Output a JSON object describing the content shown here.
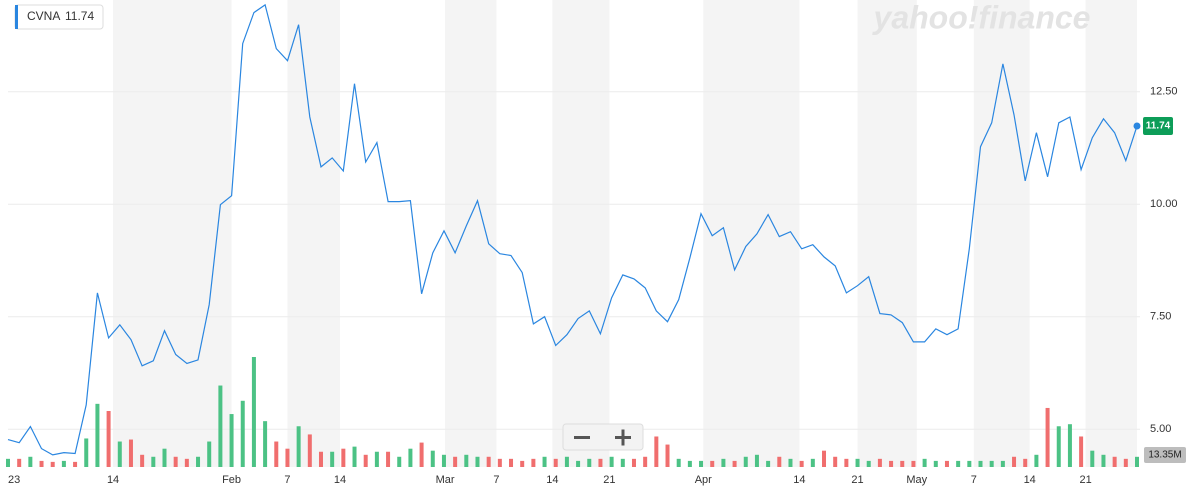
{
  "chart_data": {
    "type": "line",
    "brand": "yahoo!finance",
    "ylim": [
      4.16,
      14.54
    ],
    "yticks": [
      {
        "value": 5,
        "label": "5.00"
      },
      {
        "value": 7.5,
        "label": "7.50"
      },
      {
        "value": 10,
        "label": "10.00"
      },
      {
        "value": 12.5,
        "label": "12.50"
      }
    ],
    "xlim": [
      0,
      101
    ],
    "xticks": [
      {
        "value": 0,
        "label": "23"
      },
      {
        "value": 9.4,
        "label": "14"
      },
      {
        "value": 20,
        "label": "Feb"
      },
      {
        "value": 25,
        "label": "7"
      },
      {
        "value": 29.7,
        "label": "14"
      },
      {
        "value": 39.1,
        "label": "Mar"
      },
      {
        "value": 43.7,
        "label": "7"
      },
      {
        "value": 48.7,
        "label": "14"
      },
      {
        "value": 53.8,
        "label": "21"
      },
      {
        "value": 62.2,
        "label": "Apr"
      },
      {
        "value": 70.8,
        "label": "14"
      },
      {
        "value": 76,
        "label": "21"
      },
      {
        "value": 81.3,
        "label": "May"
      },
      {
        "value": 86.4,
        "label": "7"
      },
      {
        "value": 91.4,
        "label": "14"
      },
      {
        "value": 96.4,
        "label": "21"
      }
    ],
    "grid": true,
    "series": [
      {
        "name": "CVNA",
        "color": "#2a86e0",
        "values": [
          4.77,
          4.7,
          5.06,
          4.57,
          4.43,
          4.48,
          4.46,
          5.54,
          8.03,
          7.03,
          7.32,
          6.99,
          6.41,
          6.52,
          7.19,
          6.66,
          6.46,
          6.54,
          7.77,
          9.99,
          10.19,
          13.57,
          14.26,
          14.43,
          13.46,
          13.19,
          13.99,
          11.94,
          10.83,
          11.03,
          10.74,
          12.68,
          10.94,
          11.37,
          10.06,
          10.06,
          10.08,
          8.01,
          8.92,
          9.41,
          8.92,
          9.52,
          10.08,
          9.12,
          8.9,
          8.86,
          8.48,
          7.34,
          7.5,
          6.86,
          7.1,
          7.46,
          7.63,
          7.12,
          7.92,
          8.43,
          8.34,
          8.14,
          7.63,
          7.39,
          7.88,
          8.81,
          9.79,
          9.3,
          9.48,
          8.54,
          9.06,
          9.34,
          9.77,
          9.28,
          9.39,
          9.01,
          9.1,
          8.83,
          8.63,
          8.03,
          8.19,
          8.39,
          7.57,
          7.54,
          7.37,
          6.94,
          6.94,
          7.23,
          7.1,
          7.23,
          9.01,
          11.28,
          11.81,
          13.12,
          11.99,
          10.52,
          11.59,
          10.61,
          11.81,
          11.94,
          10.77,
          11.48,
          11.9,
          11.59,
          10.97,
          11.74
        ]
      }
    ],
    "volume": {
      "up_color": "#4cc285",
      "down_color": "#f06e6e",
      "badge": "13.35M",
      "values": [
        10.7,
        10.7,
        13.4,
        8.0,
        6.7,
        8.0,
        6.7,
        37.4,
        82.8,
        73.4,
        33.4,
        36.0,
        16.0,
        13.4,
        24.0,
        13.4,
        10.7,
        13.4,
        33.4,
        106.8,
        69.4,
        86.8,
        144.2,
        60.1,
        33.4,
        24.0,
        53.4,
        42.7,
        20.0,
        20.0,
        24.0,
        26.7,
        16.0,
        20.0,
        20.0,
        13.4,
        24.0,
        32.0,
        21.4,
        16.0,
        13.4,
        16.0,
        13.4,
        13.4,
        10.7,
        10.7,
        8.0,
        10.7,
        13.4,
        10.7,
        13.4,
        8.0,
        10.7,
        10.7,
        13.4,
        10.7,
        10.7,
        13.4,
        40.0,
        29.4,
        10.7,
        8.0,
        8.0,
        8.0,
        10.7,
        8.0,
        13.4,
        16.0,
        8.0,
        13.4,
        10.7,
        8.0,
        10.7,
        21.4,
        13.4,
        10.7,
        10.7,
        8.0,
        10.7,
        8.0,
        8.0,
        8.0,
        10.7,
        8.0,
        8.0,
        8.0,
        8.0,
        8.0,
        8.0,
        8.0,
        13.4,
        10.7,
        16.0,
        77.4,
        53.4,
        56.1,
        40.0,
        21.4,
        16.0,
        13.4,
        10.7,
        13.35
      ]
    }
  }
}
